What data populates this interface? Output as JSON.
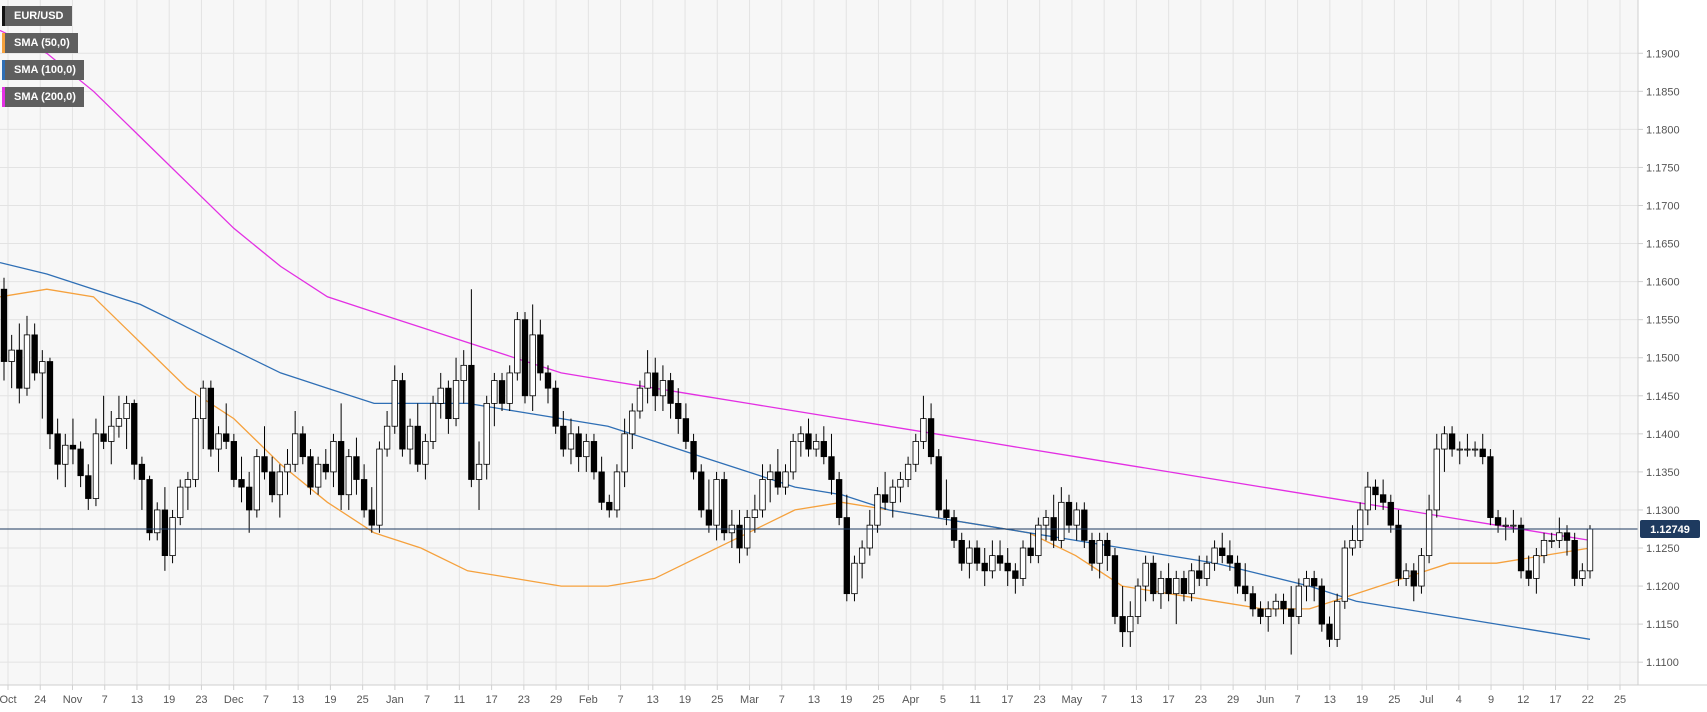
{
  "colors": {
    "background": "#f7f7f7",
    "grid": "#e3e3e3",
    "axis_text": "#555555",
    "candle_up_fill": "#ffffff",
    "candle_down_fill": "#000000",
    "candle_outline": "#000000",
    "price_line": "#1e3a5f",
    "price_badge": "#1e3a5f",
    "legend_bg": "#5f5f5f"
  },
  "legend": [
    {
      "label": "EUR/USD",
      "color": "#111111"
    },
    {
      "label": "SMA (50,0)",
      "color": "#f5a13d"
    },
    {
      "label": "SMA (100,0)",
      "color": "#2f6fb5"
    },
    {
      "label": "SMA (200,0)",
      "color": "#e32fe3"
    }
  ],
  "current_price": "1.12749",
  "chart_data": {
    "type": "line",
    "symbol": "EUR/USD",
    "timeframe": "daily",
    "title": "",
    "xlabel": "",
    "ylabel": "",
    "ylim": [
      1.107,
      1.197
    ],
    "y_ticks": [
      "1.1100",
      "1.1150",
      "1.1200",
      "1.1250",
      "1.1300",
      "1.1350",
      "1.1400",
      "1.1450",
      "1.1500",
      "1.1550",
      "1.1600",
      "1.1650",
      "1.1700",
      "1.1750",
      "1.1800",
      "1.1850",
      "1.1900"
    ],
    "x_ticks": [
      "Oct",
      "24",
      "Nov",
      "7",
      "13",
      "19",
      "23",
      "Dec",
      "7",
      "13",
      "19",
      "25",
      "Jan",
      "7",
      "11",
      "17",
      "23",
      "29",
      "Feb",
      "7",
      "13",
      "19",
      "25",
      "Mar",
      "7",
      "13",
      "19",
      "25",
      "Apr",
      "5",
      "11",
      "17",
      "23",
      "May",
      "7",
      "13",
      "17",
      "23",
      "29",
      "Jun",
      "7",
      "13",
      "19",
      "25",
      "Jul",
      "4",
      "9",
      "12",
      "17",
      "22",
      "25"
    ],
    "grid": true,
    "legend_position": "top-left",
    "current_price_line": 1.12749,
    "candles": [
      [
        1.159,
        1.1605,
        1.147,
        1.1495
      ],
      [
        1.1495,
        1.153,
        1.146,
        1.151
      ],
      [
        1.151,
        1.1545,
        1.144,
        1.146
      ],
      [
        1.146,
        1.1555,
        1.145,
        1.153
      ],
      [
        1.153,
        1.1545,
        1.147,
        1.148
      ],
      [
        1.148,
        1.151,
        1.142,
        1.1495
      ],
      [
        1.1495,
        1.15,
        1.138,
        1.14
      ],
      [
        1.14,
        1.142,
        1.134,
        1.136
      ],
      [
        1.136,
        1.14,
        1.133,
        1.1385
      ],
      [
        1.1385,
        1.142,
        1.136,
        1.138
      ],
      [
        1.138,
        1.139,
        1.133,
        1.1345
      ],
      [
        1.1345,
        1.136,
        1.13,
        1.1315
      ],
      [
        1.1315,
        1.142,
        1.1305,
        1.14
      ],
      [
        1.14,
        1.145,
        1.138,
        1.139
      ],
      [
        1.139,
        1.143,
        1.136,
        1.141
      ],
      [
        1.141,
        1.145,
        1.1395,
        1.142
      ],
      [
        1.142,
        1.145,
        1.138,
        1.144
      ],
      [
        1.144,
        1.1445,
        1.134,
        1.136
      ],
      [
        1.136,
        1.137,
        1.13,
        1.134
      ],
      [
        1.134,
        1.1345,
        1.126,
        1.127
      ],
      [
        1.127,
        1.131,
        1.126,
        1.13
      ],
      [
        1.13,
        1.133,
        1.122,
        1.124
      ],
      [
        1.124,
        1.13,
        1.123,
        1.129
      ],
      [
        1.129,
        1.134,
        1.128,
        1.133
      ],
      [
        1.133,
        1.135,
        1.13,
        1.134
      ],
      [
        1.134,
        1.145,
        1.133,
        1.142
      ],
      [
        1.142,
        1.147,
        1.138,
        1.146
      ],
      [
        1.146,
        1.147,
        1.137,
        1.138
      ],
      [
        1.138,
        1.141,
        1.135,
        1.14
      ],
      [
        1.14,
        1.144,
        1.138,
        1.139
      ],
      [
        1.139,
        1.14,
        1.133,
        1.134
      ],
      [
        1.134,
        1.137,
        1.131,
        1.133
      ],
      [
        1.133,
        1.135,
        1.127,
        1.13
      ],
      [
        1.13,
        1.138,
        1.129,
        1.137
      ],
      [
        1.137,
        1.141,
        1.134,
        1.135
      ],
      [
        1.135,
        1.137,
        1.131,
        1.132
      ],
      [
        1.132,
        1.136,
        1.129,
        1.135
      ],
      [
        1.135,
        1.138,
        1.132,
        1.136
      ],
      [
        1.136,
        1.143,
        1.135,
        1.14
      ],
      [
        1.14,
        1.141,
        1.136,
        1.137
      ],
      [
        1.137,
        1.138,
        1.132,
        1.133
      ],
      [
        1.133,
        1.137,
        1.132,
        1.136
      ],
      [
        1.136,
        1.138,
        1.134,
        1.135
      ],
      [
        1.135,
        1.14,
        1.133,
        1.139
      ],
      [
        1.139,
        1.144,
        1.13,
        1.132
      ],
      [
        1.132,
        1.138,
        1.13,
        1.137
      ],
      [
        1.137,
        1.1395,
        1.132,
        1.134
      ],
      [
        1.134,
        1.136,
        1.129,
        1.13
      ],
      [
        1.13,
        1.133,
        1.127,
        1.128
      ],
      [
        1.128,
        1.139,
        1.127,
        1.138
      ],
      [
        1.138,
        1.143,
        1.137,
        1.141
      ],
      [
        1.141,
        1.149,
        1.14,
        1.147
      ],
      [
        1.147,
        1.148,
        1.137,
        1.138
      ],
      [
        1.138,
        1.142,
        1.136,
        1.141
      ],
      [
        1.141,
        1.144,
        1.135,
        1.136
      ],
      [
        1.136,
        1.14,
        1.134,
        1.139
      ],
      [
        1.139,
        1.145,
        1.138,
        1.144
      ],
      [
        1.144,
        1.148,
        1.142,
        1.146
      ],
      [
        1.146,
        1.147,
        1.14,
        1.142
      ],
      [
        1.142,
        1.15,
        1.141,
        1.147
      ],
      [
        1.147,
        1.151,
        1.144,
        1.149
      ],
      [
        1.149,
        1.159,
        1.133,
        1.134
      ],
      [
        1.134,
        1.139,
        1.13,
        1.136
      ],
      [
        1.136,
        1.145,
        1.134,
        1.144
      ],
      [
        1.144,
        1.148,
        1.141,
        1.147
      ],
      [
        1.147,
        1.148,
        1.143,
        1.144
      ],
      [
        1.144,
        1.149,
        1.143,
        1.148
      ],
      [
        1.148,
        1.156,
        1.147,
        1.155
      ],
      [
        1.155,
        1.156,
        1.144,
        1.145
      ],
      [
        1.145,
        1.157,
        1.143,
        1.153
      ],
      [
        1.153,
        1.155,
        1.147,
        1.148
      ],
      [
        1.148,
        1.149,
        1.144,
        1.146
      ],
      [
        1.146,
        1.147,
        1.14,
        1.141
      ],
      [
        1.141,
        1.143,
        1.137,
        1.138
      ],
      [
        1.138,
        1.142,
        1.136,
        1.14
      ],
      [
        1.14,
        1.141,
        1.135,
        1.137
      ],
      [
        1.137,
        1.14,
        1.135,
        1.139
      ],
      [
        1.139,
        1.14,
        1.134,
        1.135
      ],
      [
        1.135,
        1.137,
        1.13,
        1.131
      ],
      [
        1.131,
        1.132,
        1.129,
        1.13
      ],
      [
        1.13,
        1.136,
        1.129,
        1.135
      ],
      [
        1.135,
        1.142,
        1.133,
        1.14
      ],
      [
        1.14,
        1.144,
        1.138,
        1.143
      ],
      [
        1.143,
        1.147,
        1.142,
        1.146
      ],
      [
        1.146,
        1.151,
        1.144,
        1.148
      ],
      [
        1.148,
        1.15,
        1.143,
        1.145
      ],
      [
        1.145,
        1.149,
        1.143,
        1.147
      ],
      [
        1.147,
        1.148,
        1.142,
        1.144
      ],
      [
        1.144,
        1.146,
        1.14,
        1.142
      ],
      [
        1.142,
        1.144,
        1.138,
        1.139
      ],
      [
        1.139,
        1.14,
        1.134,
        1.135
      ],
      [
        1.135,
        1.136,
        1.129,
        1.13
      ],
      [
        1.13,
        1.134,
        1.127,
        1.128
      ],
      [
        1.128,
        1.135,
        1.126,
        1.134
      ],
      [
        1.134,
        1.135,
        1.126,
        1.127
      ],
      [
        1.127,
        1.13,
        1.125,
        1.128
      ],
      [
        1.128,
        1.13,
        1.123,
        1.125
      ],
      [
        1.125,
        1.13,
        1.124,
        1.129
      ],
      [
        1.129,
        1.132,
        1.127,
        1.13
      ],
      [
        1.13,
        1.136,
        1.129,
        1.134
      ],
      [
        1.134,
        1.136,
        1.131,
        1.135
      ],
      [
        1.135,
        1.138,
        1.132,
        1.133
      ],
      [
        1.133,
        1.136,
        1.132,
        1.135
      ],
      [
        1.135,
        1.14,
        1.134,
        1.139
      ],
      [
        1.139,
        1.141,
        1.137,
        1.14
      ],
      [
        1.14,
        1.142,
        1.137,
        1.138
      ],
      [
        1.138,
        1.14,
        1.137,
        1.139
      ],
      [
        1.139,
        1.141,
        1.136,
        1.137
      ],
      [
        1.137,
        1.14,
        1.132,
        1.134
      ],
      [
        1.134,
        1.135,
        1.128,
        1.129
      ],
      [
        1.129,
        1.132,
        1.118,
        1.119
      ],
      [
        1.119,
        1.124,
        1.118,
        1.123
      ],
      [
        1.123,
        1.126,
        1.121,
        1.125
      ],
      [
        1.125,
        1.13,
        1.124,
        1.128
      ],
      [
        1.128,
        1.133,
        1.127,
        1.132
      ],
      [
        1.132,
        1.135,
        1.13,
        1.131
      ],
      [
        1.131,
        1.134,
        1.129,
        1.133
      ],
      [
        1.133,
        1.135,
        1.131,
        1.134
      ],
      [
        1.134,
        1.137,
        1.133,
        1.136
      ],
      [
        1.136,
        1.14,
        1.135,
        1.139
      ],
      [
        1.139,
        1.145,
        1.138,
        1.142
      ],
      [
        1.142,
        1.144,
        1.136,
        1.137
      ],
      [
        1.137,
        1.138,
        1.129,
        1.13
      ],
      [
        1.13,
        1.134,
        1.128,
        1.129
      ],
      [
        1.129,
        1.13,
        1.125,
        1.126
      ],
      [
        1.126,
        1.127,
        1.122,
        1.123
      ],
      [
        1.123,
        1.126,
        1.121,
        1.125
      ],
      [
        1.125,
        1.126,
        1.122,
        1.123
      ],
      [
        1.123,
        1.125,
        1.12,
        1.122
      ],
      [
        1.122,
        1.126,
        1.121,
        1.124
      ],
      [
        1.124,
        1.126,
        1.122,
        1.123
      ],
      [
        1.123,
        1.125,
        1.12,
        1.122
      ],
      [
        1.122,
        1.123,
        1.119,
        1.121
      ],
      [
        1.121,
        1.126,
        1.12,
        1.125
      ],
      [
        1.125,
        1.127,
        1.123,
        1.124
      ],
      [
        1.124,
        1.129,
        1.123,
        1.128
      ],
      [
        1.128,
        1.13,
        1.126,
        1.129
      ],
      [
        1.129,
        1.132,
        1.125,
        1.126
      ],
      [
        1.126,
        1.133,
        1.125,
        1.131
      ],
      [
        1.131,
        1.132,
        1.127,
        1.128
      ],
      [
        1.128,
        1.131,
        1.126,
        1.13
      ],
      [
        1.13,
        1.131,
        1.125,
        1.126
      ],
      [
        1.126,
        1.127,
        1.122,
        1.123
      ],
      [
        1.123,
        1.127,
        1.121,
        1.126
      ],
      [
        1.126,
        1.127,
        1.122,
        1.124
      ],
      [
        1.124,
        1.125,
        1.115,
        1.116
      ],
      [
        1.116,
        1.12,
        1.112,
        1.114
      ],
      [
        1.114,
        1.118,
        1.112,
        1.116
      ],
      [
        1.116,
        1.121,
        1.115,
        1.12
      ],
      [
        1.12,
        1.124,
        1.118,
        1.123
      ],
      [
        1.123,
        1.124,
        1.118,
        1.119
      ],
      [
        1.119,
        1.122,
        1.117,
        1.121
      ],
      [
        1.121,
        1.123,
        1.118,
        1.119
      ],
      [
        1.119,
        1.122,
        1.115,
        1.121
      ],
      [
        1.121,
        1.122,
        1.118,
        1.119
      ],
      [
        1.119,
        1.123,
        1.118,
        1.122
      ],
      [
        1.122,
        1.124,
        1.12,
        1.121
      ],
      [
        1.121,
        1.124,
        1.12,
        1.123
      ],
      [
        1.123,
        1.126,
        1.122,
        1.125
      ],
      [
        1.125,
        1.127,
        1.123,
        1.124
      ],
      [
        1.124,
        1.126,
        1.122,
        1.123
      ],
      [
        1.123,
        1.124,
        1.119,
        1.12
      ],
      [
        1.12,
        1.123,
        1.118,
        1.119
      ],
      [
        1.119,
        1.12,
        1.116,
        1.117
      ],
      [
        1.117,
        1.118,
        1.115,
        1.116
      ],
      [
        1.116,
        1.118,
        1.114,
        1.117
      ],
      [
        1.117,
        1.119,
        1.116,
        1.118
      ],
      [
        1.118,
        1.119,
        1.115,
        1.117
      ],
      [
        1.117,
        1.12,
        1.111,
        1.116
      ],
      [
        1.116,
        1.121,
        1.115,
        1.12
      ],
      [
        1.12,
        1.122,
        1.118,
        1.121
      ],
      [
        1.121,
        1.122,
        1.118,
        1.12
      ],
      [
        1.12,
        1.121,
        1.114,
        1.115
      ],
      [
        1.115,
        1.116,
        1.112,
        1.113
      ],
      [
        1.113,
        1.119,
        1.112,
        1.118
      ],
      [
        1.118,
        1.126,
        1.117,
        1.125
      ],
      [
        1.125,
        1.128,
        1.124,
        1.126
      ],
      [
        1.126,
        1.131,
        1.125,
        1.13
      ],
      [
        1.13,
        1.135,
        1.128,
        1.133
      ],
      [
        1.133,
        1.134,
        1.13,
        1.132
      ],
      [
        1.132,
        1.134,
        1.13,
        1.131
      ],
      [
        1.131,
        1.132,
        1.127,
        1.128
      ],
      [
        1.128,
        1.13,
        1.12,
        1.121
      ],
      [
        1.121,
        1.123,
        1.12,
        1.122
      ],
      [
        1.122,
        1.123,
        1.118,
        1.12
      ],
      [
        1.12,
        1.125,
        1.119,
        1.124
      ],
      [
        1.124,
        1.132,
        1.123,
        1.13
      ],
      [
        1.13,
        1.14,
        1.129,
        1.138
      ],
      [
        1.138,
        1.141,
        1.135,
        1.14
      ],
      [
        1.14,
        1.141,
        1.137,
        1.138
      ],
      [
        1.138,
        1.139,
        1.136,
        1.138
      ],
      [
        1.138,
        1.14,
        1.137,
        1.138
      ],
      [
        1.138,
        1.139,
        1.137,
        1.138
      ],
      [
        1.138,
        1.14,
        1.136,
        1.137
      ],
      [
        1.137,
        1.138,
        1.128,
        1.129
      ],
      [
        1.129,
        1.13,
        1.127,
        1.128
      ],
      [
        1.128,
        1.129,
        1.126,
        1.128
      ],
      [
        1.128,
        1.13,
        1.127,
        1.128
      ],
      [
        1.128,
        1.129,
        1.121,
        1.122
      ],
      [
        1.122,
        1.124,
        1.12,
        1.121
      ],
      [
        1.121,
        1.125,
        1.119,
        1.124
      ],
      [
        1.124,
        1.127,
        1.123,
        1.126
      ],
      [
        1.126,
        1.127,
        1.125,
        1.126
      ],
      [
        1.126,
        1.129,
        1.125,
        1.127
      ],
      [
        1.127,
        1.128,
        1.124,
        1.126
      ],
      [
        1.126,
        1.127,
        1.12,
        1.121
      ],
      [
        1.121,
        1.123,
        1.12,
        1.122
      ],
      [
        1.122,
        1.128,
        1.121,
        1.1275
      ]
    ],
    "series": [
      {
        "name": "SMA (50,0)",
        "color": "#f5a13d",
        "values": [
          1.158,
          1.159,
          1.158,
          1.152,
          1.146,
          1.142,
          1.136,
          1.131,
          1.127,
          1.125,
          1.122,
          1.121,
          1.12,
          1.12,
          1.121,
          1.124,
          1.127,
          1.13,
          1.131,
          1.13,
          1.129,
          1.128,
          1.127,
          1.124,
          1.12,
          1.119,
          1.118,
          1.117,
          1.117,
          1.119,
          1.121,
          1.123,
          1.123,
          1.124,
          1.125
        ]
      },
      {
        "name": "SMA (100,0)",
        "color": "#2f6fb5",
        "values": [
          1.1625,
          1.161,
          1.159,
          1.157,
          1.154,
          1.151,
          1.148,
          1.146,
          1.144,
          1.144,
          1.144,
          1.143,
          1.142,
          1.141,
          1.139,
          1.137,
          1.135,
          1.133,
          1.132,
          1.13,
          1.129,
          1.128,
          1.127,
          1.126,
          1.125,
          1.124,
          1.123,
          1.1215,
          1.12,
          1.118,
          1.117,
          1.116,
          1.115,
          1.114,
          1.113
        ]
      },
      {
        "name": "SMA (200,0)",
        "color": "#e32fe3",
        "values": [
          1.193,
          1.19,
          1.185,
          1.179,
          1.173,
          1.167,
          1.162,
          1.158,
          1.156,
          1.154,
          1.152,
          1.15,
          1.148,
          1.147,
          1.146,
          1.145,
          1.144,
          1.143,
          1.142,
          1.141,
          1.14,
          1.139,
          1.138,
          1.137,
          1.136,
          1.135,
          1.134,
          1.133,
          1.132,
          1.131,
          1.13,
          1.129,
          1.128,
          1.127,
          1.126
        ]
      }
    ]
  }
}
